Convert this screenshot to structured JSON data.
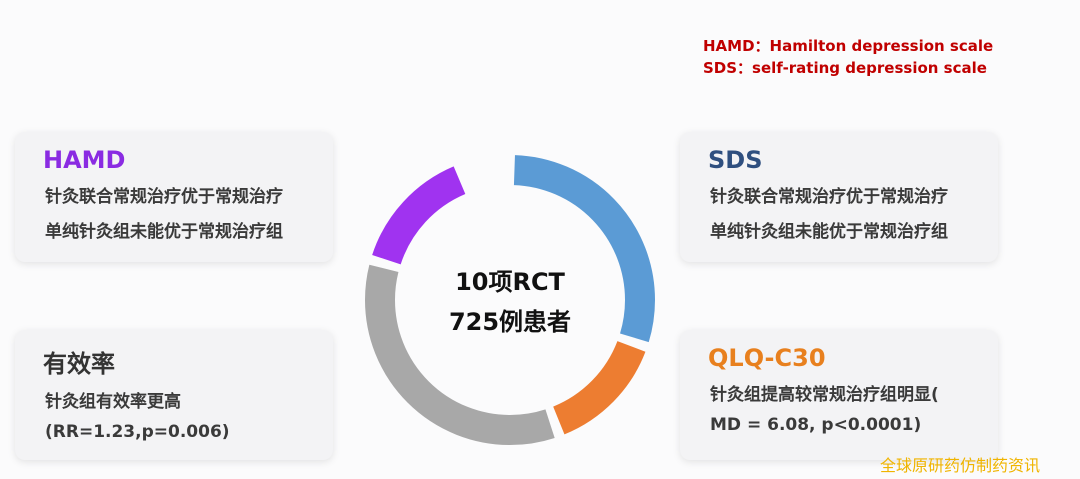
{
  "legend": [
    "HAMD：Hamilton depression scale",
    "SDS：self-rating depression scale"
  ],
  "center": [
    "10项RCT",
    "725例患者"
  ],
  "cards": [
    {
      "title": "HAMD",
      "lines": [
        "针灸联合常规治疗优于常规治疗",
        "单纯针灸组未能优于常规治疗组"
      ]
    },
    {
      "title": "有效率",
      "lines": [
        "针灸组有效率更高",
        "(RR=1.23,p=0.006)"
      ]
    },
    {
      "title": "SDS",
      "lines": [
        "针灸联合常规治疗优于常规治疗",
        "单纯针灸组未能优于常规治疗组"
      ]
    },
    {
      "title": "QLQ-C30",
      "lines": [
        "针灸组提高较常规治疗组明显(",
        "MD = 6.08, p<0.0001)"
      ]
    }
  ],
  "watermark": "全球原研药仿制药资讯"
}
